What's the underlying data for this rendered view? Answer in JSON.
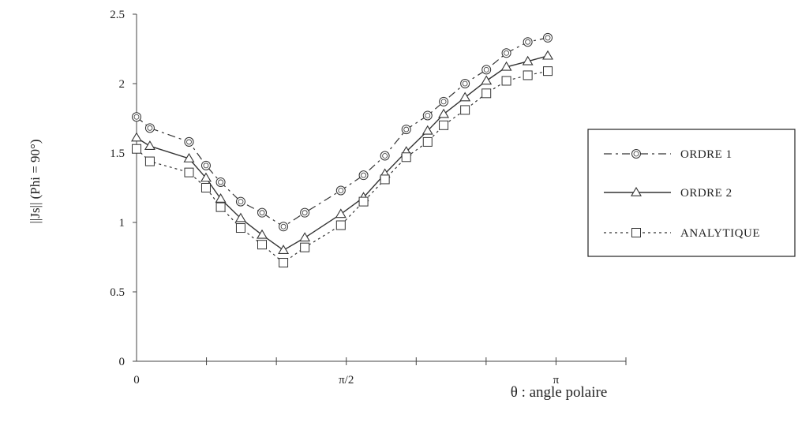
{
  "chart_data": {
    "type": "line",
    "xlabel": "θ : angle polaire",
    "ylabel": "||Js|| (Phi = 90°)",
    "xlim": [
      0,
      3.6652
    ],
    "ylim": [
      0,
      2.5
    ],
    "x_tick_labels": [
      {
        "value": 0,
        "label": "0"
      },
      {
        "value": 1.5708,
        "label": "π/2"
      },
      {
        "value": 3.1416,
        "label": "π"
      }
    ],
    "y_ticks": [
      {
        "value": 0,
        "label": "0"
      },
      {
        "value": 0.5,
        "label": "0.5"
      },
      {
        "value": 1,
        "label": "1"
      },
      {
        "value": 1.5,
        "label": "1.5"
      },
      {
        "value": 2,
        "label": "2"
      },
      {
        "value": 2.5,
        "label": "2.5"
      }
    ],
    "x_minor_ticks": [
      0.5236,
      1.0472,
      1.5708,
      2.0944,
      2.618,
      3.1416,
      3.6652
    ],
    "grid": false,
    "legend_position": "right",
    "series": [
      {
        "name": "ORDRE 1",
        "marker": "circle",
        "dash": "10,5,3,5",
        "color": "#333333",
        "x": [
          0,
          0.1,
          0.393,
          0.393,
          0.52,
          0.63,
          0.78,
          0.94,
          1.1,
          1.26,
          1.53,
          1.7,
          1.86,
          2.02,
          2.18,
          2.3,
          2.46,
          2.62,
          2.77,
          2.93,
          3.08
        ],
        "y": [
          1.76,
          1.68,
          1.58,
          1.58,
          1.41,
          1.29,
          1.15,
          1.07,
          0.97,
          1.07,
          1.23,
          1.34,
          1.48,
          1.67,
          1.77,
          1.87,
          2.0,
          2.1,
          2.22,
          2.3,
          2.33
        ]
      },
      {
        "name": "ORDRE 2",
        "marker": "triangle",
        "dash": "",
        "color": "#333333",
        "x": [
          0,
          0.1,
          0.393,
          0.52,
          0.63,
          0.78,
          0.94,
          1.1,
          1.26,
          1.53,
          1.7,
          1.86,
          2.02,
          2.18,
          2.3,
          2.46,
          2.62,
          2.77,
          2.93,
          3.08
        ],
        "y": [
          1.61,
          1.55,
          1.46,
          1.32,
          1.17,
          1.03,
          0.91,
          0.8,
          0.89,
          1.06,
          1.18,
          1.35,
          1.51,
          1.66,
          1.78,
          1.9,
          2.02,
          2.12,
          2.16,
          2.2
        ]
      },
      {
        "name": "ANALYTIQUE",
        "marker": "square",
        "dash": "3,4",
        "color": "#333333",
        "x": [
          0,
          0.1,
          0.393,
          0.52,
          0.63,
          0.78,
          0.94,
          1.1,
          1.26,
          1.53,
          1.7,
          1.86,
          2.02,
          2.18,
          2.3,
          2.46,
          2.62,
          2.77,
          2.93,
          3.08
        ],
        "y": [
          1.53,
          1.44,
          1.36,
          1.25,
          1.11,
          0.96,
          0.84,
          0.71,
          0.82,
          0.98,
          1.15,
          1.31,
          1.47,
          1.58,
          1.7,
          1.81,
          1.93,
          2.02,
          2.06,
          2.09
        ]
      }
    ]
  }
}
